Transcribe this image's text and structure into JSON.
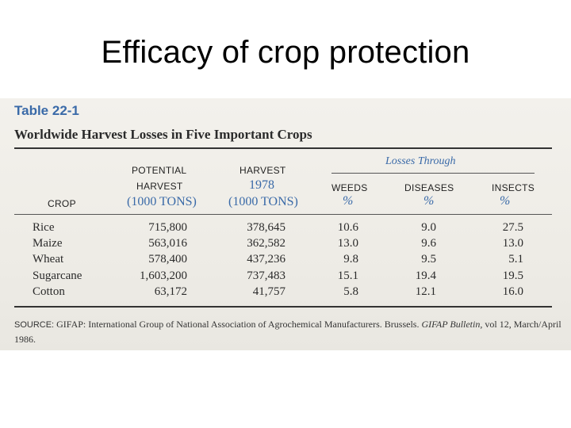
{
  "slide": {
    "title": "Efficacy of crop protection"
  },
  "table": {
    "number": "Table 22-1",
    "caption": "Worldwide Harvest Losses in Five Important Crops",
    "group_header": "Losses Through",
    "headers": {
      "crop": "CROP",
      "potential_line1": "POTENTIAL",
      "potential_line2": "HARVEST",
      "potential_unit": "(1000 TONS)",
      "harvest_line1": "HARVEST",
      "harvest_year": "1978",
      "harvest_unit": "(1000 TONS)",
      "weeds": "WEEDS",
      "diseases": "DISEASES",
      "insects": "INSECTS",
      "pct": "%"
    },
    "rows": [
      {
        "crop": "Rice",
        "potential": "715,800",
        "harvest": "378,645",
        "weeds": "10.6",
        "diseases": "9.0",
        "insects": "27.5"
      },
      {
        "crop": "Maize",
        "potential": "563,016",
        "harvest": "362,582",
        "weeds": "13.0",
        "diseases": "9.6",
        "insects": "13.0"
      },
      {
        "crop": "Wheat",
        "potential": "578,400",
        "harvest": "437,236",
        "weeds": "9.8",
        "diseases": "9.5",
        "insects": "5.1"
      },
      {
        "crop": "Sugarcane",
        "potential": "1,603,200",
        "harvest": "737,483",
        "weeds": "15.1",
        "diseases": "19.4",
        "insects": "19.5"
      },
      {
        "crop": "Cotton",
        "potential": "63,172",
        "harvest": "41,757",
        "weeds": "5.8",
        "diseases": "12.1",
        "insects": "16.0"
      }
    ],
    "source": {
      "label": "SOURCE:",
      "text": " GIFAP: International Group of National Association of Agrochemical Manufacturers. Brussels. ",
      "publication": "GIFAP Bulletin,",
      "tail": " vol 12, March/April 1986."
    }
  }
}
